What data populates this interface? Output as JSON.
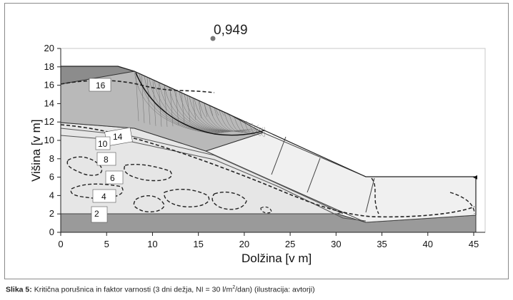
{
  "figure": {
    "fs_value": "0,949",
    "xlabel": "Dolžina [v m]",
    "ylabel": "Višina [v m]",
    "xticks": [
      "0",
      "5",
      "10",
      "15",
      "20",
      "25",
      "30",
      "35",
      "40",
      "45"
    ],
    "yticks": [
      "0",
      "2",
      "4",
      "6",
      "8",
      "10",
      "12",
      "14",
      "16",
      "18",
      "20"
    ],
    "contour_labels": [
      "16",
      "14",
      "10",
      "8",
      "6",
      "4",
      "2"
    ]
  },
  "caption": {
    "label": "Slika 5:",
    "text_before": " Kritična porušnica in faktor varnosti (3 dni dežja, NI = 30 l/m",
    "sup": "2",
    "text_after": "/dan) (ilustracija: avtorji)"
  }
}
